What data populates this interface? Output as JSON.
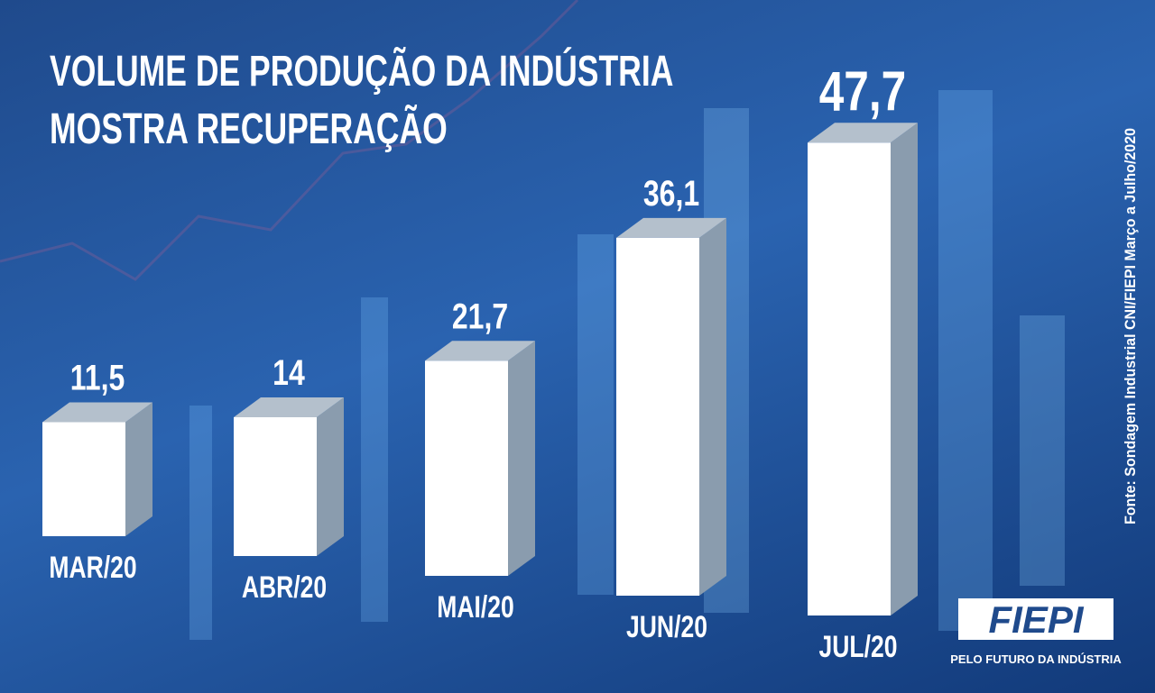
{
  "chart_data": {
    "type": "bar3d",
    "title": "VOLUME DE PRODUÇÃO DA INDÚSTRIA MOSTRA RECUPERAÇÃO",
    "categories": [
      "MAR/20",
      "ABR/20",
      "MAI/20",
      "JUN/20",
      "JUL/20"
    ],
    "values": [
      11.5,
      14,
      21.7,
      36.1,
      47.7
    ],
    "value_labels": [
      "11,5",
      "14",
      "21,7",
      "36,1",
      "47,7"
    ],
    "color": "#ffffff",
    "source": "Fonte: Sondagem Industrial CNI/FIEPI Março a Julho/2020",
    "logo": "FIEPI",
    "tagline": "PELO FUTURO DA INDÚSTRIA"
  }
}
